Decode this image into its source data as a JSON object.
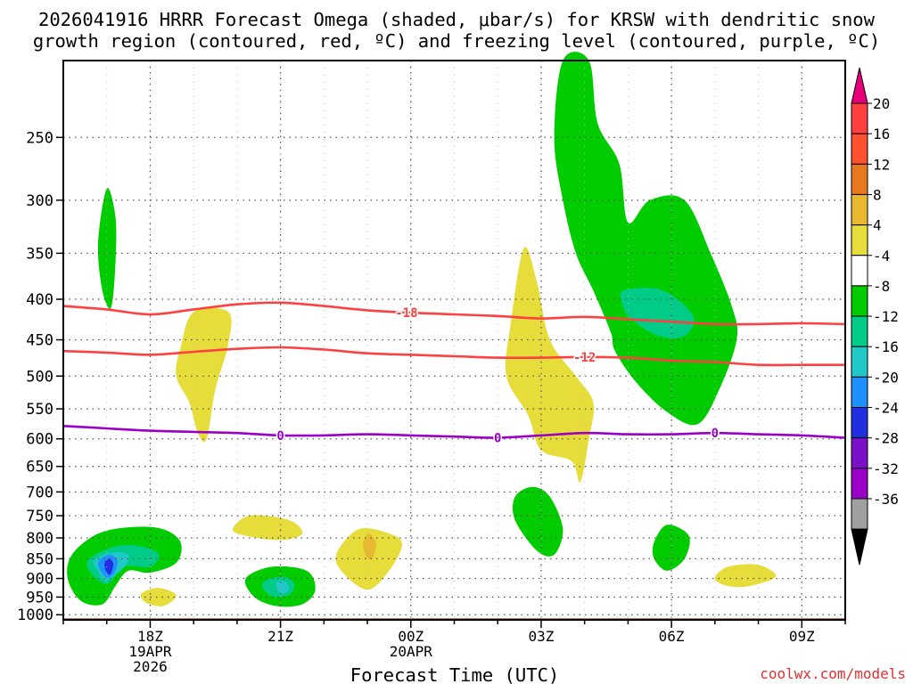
{
  "chart_data": {
    "type": "time-height cross section",
    "title_line1": "2026041916 HRRR Forecast Omega (shaded, μbar/s) for KRSW with dendritic snow",
    "title_line2": "growth region (contoured, red, ºC) and freezing level (contoured, purple, ºC)",
    "xlabel": "Forecast Time (UTC)",
    "ylabel": "",
    "watermark": "coolwx.com/models",
    "x_unit": "hours after 2026-04-19 16Z",
    "xlim": [
      0,
      18
    ],
    "pressure_ticks": [
      250,
      300,
      350,
      400,
      450,
      500,
      550,
      600,
      650,
      700,
      750,
      800,
      850,
      900,
      950,
      1000
    ],
    "pressure_range": [
      200,
      1015
    ],
    "x_ticks": [
      {
        "h": 2,
        "l1": "18Z",
        "l2": "19APR",
        "l3": "2026"
      },
      {
        "h": 5,
        "l1": "21Z",
        "l2": "",
        "l3": ""
      },
      {
        "h": 8,
        "l1": "00Z",
        "l2": "20APR",
        "l3": ""
      },
      {
        "h": 11,
        "l1": "03Z",
        "l2": "",
        "l3": ""
      },
      {
        "h": 14,
        "l1": "06Z",
        "l2": "",
        "l3": ""
      },
      {
        "h": 17,
        "l1": "09Z",
        "l2": "",
        "l3": ""
      }
    ],
    "colorbar": {
      "top_color": "#e8007a",
      "bottom_color": "#000000",
      "bins": [
        {
          "label": "20",
          "color": "#ff4040"
        },
        {
          "label": "16",
          "color": "#ff5030"
        },
        {
          "label": "12",
          "color": "#e87820"
        },
        {
          "label": "8",
          "color": "#e8b830"
        },
        {
          "label": "4",
          "color": "#e6dc3a"
        },
        {
          "label": "-4",
          "color": "#ffffff"
        },
        {
          "label": "-8",
          "color": "#00cc00"
        },
        {
          "label": "-12",
          "color": "#00cc88"
        },
        {
          "label": "-16",
          "color": "#20c8c8"
        },
        {
          "label": "-20",
          "color": "#1e90ff"
        },
        {
          "label": "-24",
          "color": "#2030e0"
        },
        {
          "label": "-28",
          "color": "#7a10c8"
        },
        {
          "label": "-32",
          "color": "#9a00c8"
        },
        {
          "label": "-36",
          "color": "#a0a0a0"
        }
      ]
    },
    "omega_regions": [
      {
        "name": "green-upper-right",
        "color": "#00cc00",
        "points": [
          [
            11.5,
            200
          ],
          [
            12.1,
            200
          ],
          [
            12.3,
            240
          ],
          [
            12.8,
            270
          ],
          [
            13.0,
            320
          ],
          [
            13.5,
            300
          ],
          [
            14.3,
            300
          ],
          [
            14.9,
            350
          ],
          [
            15.4,
            410
          ],
          [
            15.5,
            450
          ],
          [
            15.1,
            520
          ],
          [
            14.6,
            575
          ],
          [
            13.9,
            555
          ],
          [
            13.2,
            510
          ],
          [
            12.7,
            465
          ],
          [
            12.6,
            440
          ],
          [
            12.2,
            390
          ],
          [
            11.8,
            350
          ],
          [
            11.5,
            300
          ],
          [
            11.3,
            250
          ]
        ]
      },
      {
        "name": "teal-upper-right",
        "color": "#00cc88",
        "points": [
          [
            12.9,
            390
          ],
          [
            13.8,
            390
          ],
          [
            14.5,
            420
          ],
          [
            14.3,
            445
          ],
          [
            13.7,
            445
          ],
          [
            13.1,
            425
          ],
          [
            12.9,
            410
          ]
        ]
      },
      {
        "name": "green-thin-left",
        "color": "#00cc00",
        "points": [
          [
            1.0,
            290
          ],
          [
            1.2,
            315
          ],
          [
            1.2,
            360
          ],
          [
            1.1,
            410
          ],
          [
            0.9,
            390
          ],
          [
            0.8,
            340
          ]
        ]
      },
      {
        "name": "yellow-left",
        "color": "#e6dc3a",
        "points": [
          [
            3.0,
            415
          ],
          [
            3.8,
            415
          ],
          [
            3.8,
            455
          ],
          [
            3.5,
            520
          ],
          [
            3.3,
            600
          ],
          [
            3.1,
            590
          ],
          [
            2.9,
            540
          ],
          [
            2.6,
            500
          ],
          [
            2.7,
            460
          ]
        ]
      },
      {
        "name": "yellow-center",
        "color": "#e6dc3a",
        "points": [
          [
            10.6,
            345
          ],
          [
            10.9,
            380
          ],
          [
            11.2,
            450
          ],
          [
            11.8,
            500
          ],
          [
            12.2,
            540
          ],
          [
            12.1,
            600
          ],
          [
            11.9,
            680
          ],
          [
            11.7,
            640
          ],
          [
            11.0,
            620
          ],
          [
            10.7,
            560
          ],
          [
            10.2,
            500
          ],
          [
            10.3,
            430
          ]
        ]
      },
      {
        "name": "yellow-low-1",
        "color": "#e6dc3a",
        "points": [
          [
            3.9,
            780
          ],
          [
            4.3,
            750
          ],
          [
            5.2,
            760
          ],
          [
            5.5,
            790
          ],
          [
            5.0,
            805
          ],
          [
            4.2,
            795
          ]
        ]
      },
      {
        "name": "yellow-low-2",
        "color": "#e6dc3a",
        "points": [
          [
            6.3,
            835
          ],
          [
            6.8,
            780
          ],
          [
            7.5,
            790
          ],
          [
            7.8,
            815
          ],
          [
            7.5,
            880
          ],
          [
            7.0,
            930
          ],
          [
            6.4,
            880
          ]
        ]
      },
      {
        "name": "orange-low-2",
        "color": "#e8b830",
        "points": [
          [
            6.9,
            810
          ],
          [
            7.05,
            790
          ],
          [
            7.2,
            815
          ],
          [
            7.1,
            850
          ],
          [
            6.95,
            840
          ]
        ]
      },
      {
        "name": "yellow-low-small",
        "color": "#e6dc3a",
        "points": [
          [
            1.8,
            940
          ],
          [
            2.2,
            925
          ],
          [
            2.6,
            945
          ],
          [
            2.3,
            975
          ],
          [
            1.9,
            965
          ]
        ]
      },
      {
        "name": "yellow-low-right",
        "color": "#e6dc3a",
        "points": [
          [
            15.0,
            900
          ],
          [
            15.3,
            870
          ],
          [
            16.0,
            865
          ],
          [
            16.4,
            895
          ],
          [
            15.8,
            920
          ],
          [
            15.3,
            920
          ]
        ]
      },
      {
        "name": "green-low-center",
        "color": "#00cc00",
        "points": [
          [
            10.4,
            710
          ],
          [
            10.8,
            690
          ],
          [
            11.2,
            710
          ],
          [
            11.5,
            780
          ],
          [
            11.3,
            840
          ],
          [
            10.9,
            830
          ],
          [
            10.4,
            760
          ]
        ]
      },
      {
        "name": "green-low-right",
        "color": "#00cc00",
        "points": [
          [
            13.6,
            810
          ],
          [
            13.9,
            770
          ],
          [
            14.4,
            795
          ],
          [
            14.3,
            850
          ],
          [
            13.9,
            880
          ],
          [
            13.6,
            850
          ]
        ]
      },
      {
        "name": "green-low-left",
        "color": "#00cc00",
        "points": [
          [
            0.2,
            840
          ],
          [
            0.8,
            790
          ],
          [
            1.6,
            775
          ],
          [
            2.3,
            780
          ],
          [
            2.7,
            810
          ],
          [
            2.6,
            860
          ],
          [
            2.0,
            885
          ],
          [
            1.5,
            880
          ],
          [
            1.2,
            920
          ],
          [
            0.9,
            970
          ],
          [
            0.4,
            960
          ],
          [
            0.1,
            900
          ]
        ]
      },
      {
        "name": "teal-low-left",
        "color": "#00cc88",
        "points": [
          [
            0.6,
            850
          ],
          [
            1.2,
            820
          ],
          [
            1.8,
            820
          ],
          [
            2.2,
            840
          ],
          [
            2.0,
            870
          ],
          [
            1.4,
            870
          ],
          [
            1.0,
            915
          ],
          [
            0.6,
            880
          ]
        ]
      },
      {
        "name": "cyan-low-left",
        "color": "#20c8c8",
        "points": [
          [
            0.7,
            855
          ],
          [
            1.1,
            835
          ],
          [
            1.5,
            840
          ],
          [
            1.4,
            870
          ],
          [
            1.0,
            905
          ],
          [
            0.8,
            880
          ]
        ]
      },
      {
        "name": "blue-low-left",
        "color": "#1e90ff",
        "points": [
          [
            0.8,
            860
          ],
          [
            1.05,
            840
          ],
          [
            1.25,
            855
          ],
          [
            1.15,
            890
          ],
          [
            0.95,
            895
          ]
        ]
      },
      {
        "name": "darkblue-low-left",
        "color": "#2030e0",
        "points": [
          [
            0.95,
            860
          ],
          [
            1.05,
            850
          ],
          [
            1.15,
            862
          ],
          [
            1.08,
            890
          ],
          [
            0.98,
            880
          ]
        ]
      },
      {
        "name": "green-low-mid",
        "color": "#00cc00",
        "points": [
          [
            4.2,
            900
          ],
          [
            4.8,
            870
          ],
          [
            5.6,
            880
          ],
          [
            5.8,
            930
          ],
          [
            5.5,
            970
          ],
          [
            4.9,
            975
          ],
          [
            4.4,
            950
          ]
        ]
      },
      {
        "name": "teal-low-mid",
        "color": "#00cc88",
        "points": [
          [
            4.6,
            910
          ],
          [
            5.0,
            895
          ],
          [
            5.3,
            910
          ],
          [
            5.25,
            940
          ],
          [
            4.9,
            950
          ],
          [
            4.65,
            935
          ]
        ]
      },
      {
        "name": "cyan-low-mid",
        "color": "#20c8c8",
        "points": [
          [
            4.9,
            910
          ],
          [
            5.1,
            908
          ],
          [
            5.2,
            925
          ],
          [
            5.1,
            940
          ],
          [
            4.95,
            935
          ]
        ]
      }
    ],
    "isotherm_m18": {
      "label": "-18",
      "label_h": 7.9,
      "color": "#ff4040",
      "x": [
        0,
        1,
        2,
        3,
        4,
        5,
        6,
        7,
        8,
        9,
        10,
        11,
        12,
        13,
        14,
        15,
        16,
        17,
        18
      ],
      "p": [
        408,
        412,
        418,
        412,
        406,
        404,
        408,
        413,
        416,
        418,
        420,
        423,
        421,
        424,
        427,
        430,
        430,
        429,
        430
      ]
    },
    "isotherm_m12": {
      "label": "-12",
      "label_h": 12.0,
      "color": "#ff4040",
      "x": [
        0,
        1,
        2,
        3,
        4,
        5,
        6,
        7,
        8,
        9,
        10,
        11,
        12,
        13,
        14,
        15,
        16,
        17,
        18
      ],
      "p": [
        465,
        467,
        470,
        466,
        462,
        460,
        463,
        468,
        470,
        472,
        474,
        474,
        473,
        474,
        478,
        480,
        484,
        484,
        484
      ]
    },
    "freezing_level": {
      "label": "0",
      "label_positions": [
        5.0,
        10.0,
        15.0
      ],
      "color": "#9a00c8",
      "x": [
        0,
        1,
        2,
        3,
        4,
        5,
        6,
        7,
        8,
        9,
        10,
        11,
        12,
        13,
        14,
        15,
        16,
        17,
        18
      ],
      "p": [
        578,
        582,
        586,
        588,
        590,
        594,
        594,
        592,
        594,
        596,
        598,
        594,
        590,
        592,
        592,
        590,
        592,
        594,
        598
      ]
    },
    "terrain_color": "#a0522d"
  }
}
